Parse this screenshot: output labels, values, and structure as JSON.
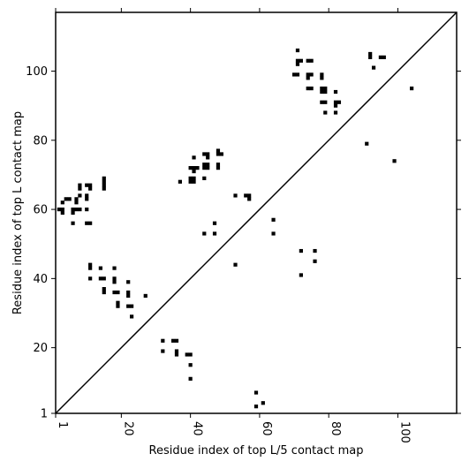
{
  "chart_data": {
    "type": "scatter",
    "title": "",
    "xlabel": "Residue index of top L/5 contact map",
    "ylabel": "Residue index of top L contact map",
    "xlim": [
      1,
      117
    ],
    "ylim": [
      1,
      117
    ],
    "xticks": [
      1,
      20,
      40,
      60,
      80,
      100
    ],
    "xtick_labels": [
      "1",
      "20",
      "40",
      "60",
      "80",
      "100"
    ],
    "yticks": [
      1,
      20,
      40,
      60,
      80,
      100
    ],
    "ytick_labels": [
      "1",
      "20",
      "40",
      "60",
      "80",
      "100"
    ],
    "x_tick_label_rotation": "vertical",
    "grid": false,
    "legend": "none",
    "diagonal_line": {
      "from": [
        1,
        1
      ],
      "to": [
        117,
        117
      ]
    },
    "marker_color": "#000000",
    "upper_triangle_points": [
      [
        71,
        106
      ],
      [
        71,
        103
      ],
      [
        72,
        103
      ],
      [
        71,
        102
      ],
      [
        74,
        103
      ],
      [
        75,
        103
      ],
      [
        74,
        99
      ],
      [
        75,
        99
      ],
      [
        74,
        98
      ],
      [
        70,
        99
      ],
      [
        71,
        99
      ],
      [
        74,
        95
      ],
      [
        75,
        95
      ],
      [
        78,
        99
      ],
      [
        78,
        98
      ],
      [
        78,
        95
      ],
      [
        79,
        95
      ],
      [
        78,
        94
      ],
      [
        79,
        94
      ],
      [
        78,
        91
      ],
      [
        79,
        91
      ],
      [
        82,
        94
      ],
      [
        82,
        91
      ],
      [
        83,
        91
      ],
      [
        82,
        90
      ],
      [
        79,
        88
      ],
      [
        82,
        88
      ],
      [
        92,
        105
      ],
      [
        92,
        104
      ],
      [
        93,
        101
      ],
      [
        95,
        104
      ],
      [
        96,
        104
      ],
      [
        104,
        95
      ],
      [
        91,
        79
      ],
      [
        99,
        74
      ],
      [
        2,
        60
      ],
      [
        3,
        60
      ],
      [
        3,
        59
      ],
      [
        4,
        63
      ],
      [
        5,
        63
      ],
      [
        3,
        62
      ],
      [
        6,
        60
      ],
      [
        7,
        60
      ],
      [
        6,
        59
      ],
      [
        7,
        63
      ],
      [
        7,
        62
      ],
      [
        6,
        56
      ],
      [
        8,
        60
      ],
      [
        8,
        67
      ],
      [
        8,
        66
      ],
      [
        8,
        64
      ],
      [
        10,
        64
      ],
      [
        10,
        63
      ],
      [
        10,
        67
      ],
      [
        11,
        67
      ],
      [
        11,
        66
      ],
      [
        10,
        60
      ],
      [
        10,
        56
      ],
      [
        11,
        56
      ],
      [
        15,
        69
      ],
      [
        15,
        68
      ],
      [
        15,
        67
      ],
      [
        15,
        66
      ],
      [
        11,
        44
      ],
      [
        11,
        43
      ],
      [
        11,
        40
      ],
      [
        14,
        43
      ],
      [
        14,
        40
      ],
      [
        15,
        40
      ],
      [
        15,
        37
      ],
      [
        15,
        36
      ],
      [
        18,
        43
      ],
      [
        18,
        40
      ],
      [
        18,
        39
      ],
      [
        18,
        36
      ],
      [
        19,
        36
      ],
      [
        19,
        33
      ],
      [
        19,
        32
      ],
      [
        22,
        39
      ],
      [
        22,
        36
      ],
      [
        22,
        35
      ],
      [
        22,
        32
      ],
      [
        23,
        32
      ],
      [
        23,
        29
      ],
      [
        27,
        35
      ],
      [
        40,
        72
      ],
      [
        41,
        72
      ],
      [
        40,
        69
      ],
      [
        41,
        69
      ],
      [
        40,
        68
      ],
      [
        41,
        68
      ],
      [
        37,
        68
      ],
      [
        41,
        71
      ],
      [
        41,
        75
      ],
      [
        42,
        72
      ],
      [
        44,
        76
      ],
      [
        45,
        76
      ],
      [
        44,
        73
      ],
      [
        45,
        73
      ],
      [
        44,
        72
      ],
      [
        45,
        72
      ],
      [
        45,
        75
      ],
      [
        44,
        69
      ],
      [
        48,
        77
      ],
      [
        48,
        76
      ],
      [
        49,
        76
      ],
      [
        48,
        73
      ],
      [
        48,
        72
      ],
      [
        44,
        53
      ],
      [
        47,
        53
      ],
      [
        47,
        56
      ],
      [
        53,
        64
      ],
      [
        56,
        64
      ],
      [
        57,
        64
      ],
      [
        57,
        63
      ],
      [
        53,
        44
      ],
      [
        64,
        57
      ],
      [
        64,
        53
      ],
      [
        72,
        48
      ],
      [
        76,
        48
      ],
      [
        76,
        45
      ],
      [
        72,
        41
      ],
      [
        32,
        22
      ],
      [
        32,
        19
      ],
      [
        35,
        22
      ],
      [
        36,
        22
      ],
      [
        36,
        19
      ],
      [
        36,
        18
      ],
      [
        39,
        18
      ],
      [
        40,
        18
      ],
      [
        40,
        15
      ],
      [
        40,
        11
      ],
      [
        59,
        7
      ],
      [
        61,
        4
      ],
      [
        59,
        3
      ]
    ]
  }
}
